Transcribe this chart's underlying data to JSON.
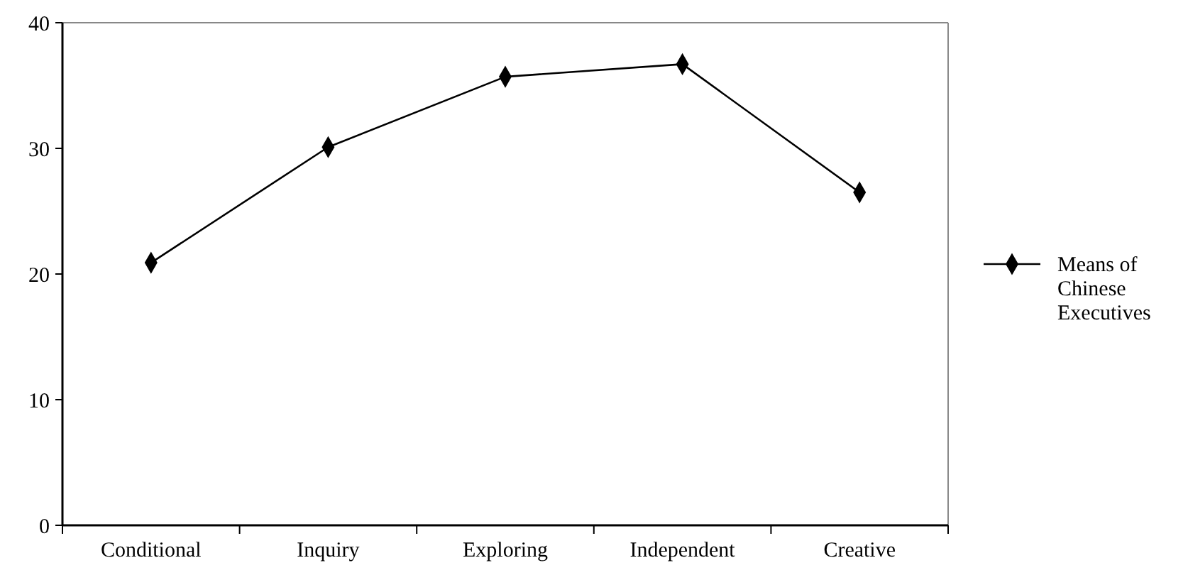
{
  "chart_data": {
    "type": "line",
    "categories": [
      "Conditional",
      "Inquiry",
      "Exploring",
      "Independent",
      "Creative"
    ],
    "series": [
      {
        "name": "Means of Chinese Executives",
        "color": "#000000",
        "values": [
          20.9,
          30.1,
          35.7,
          36.7,
          26.5
        ]
      }
    ],
    "ylim": [
      0,
      40
    ],
    "yticks": [
      0,
      10,
      20,
      30,
      40
    ],
    "legend": "right",
    "marker": "diamond",
    "line_style": "solid",
    "grid": false
  }
}
